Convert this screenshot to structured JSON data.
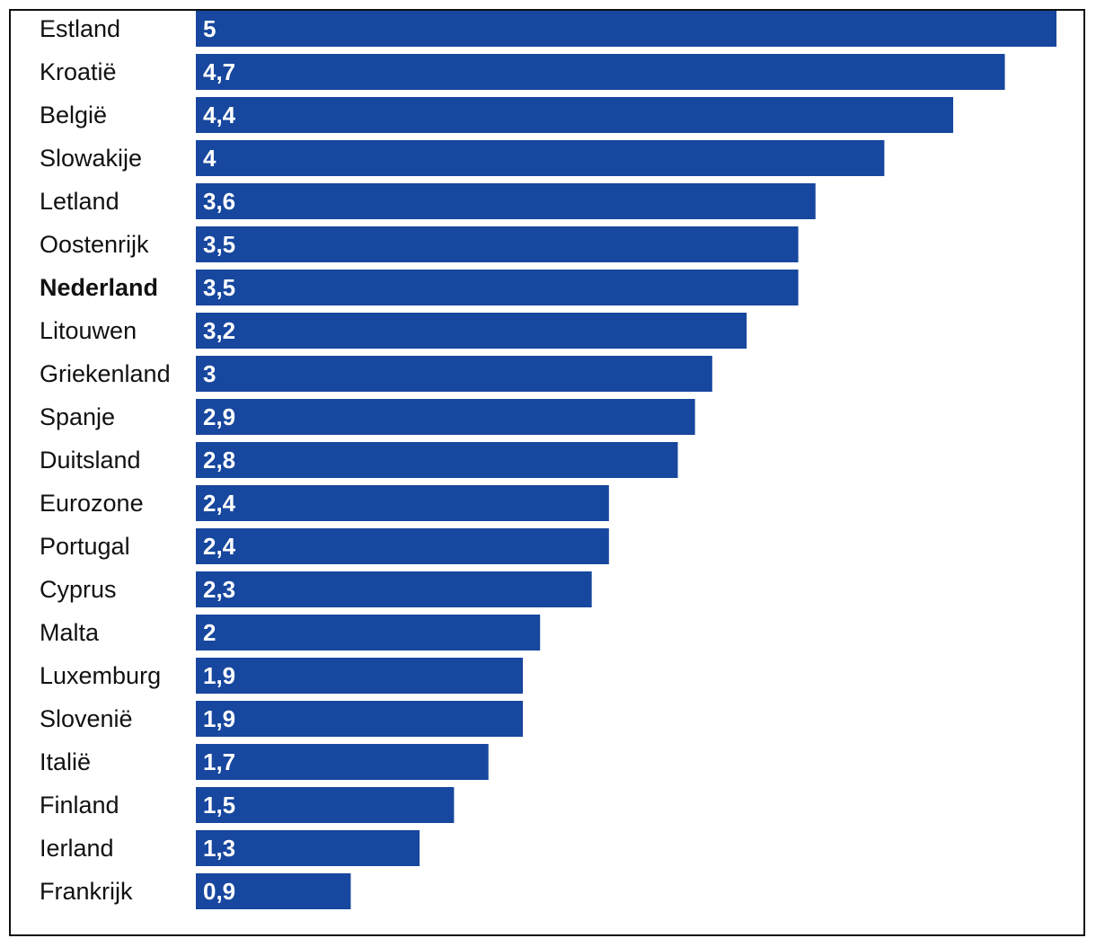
{
  "chart_data": {
    "type": "bar",
    "orientation": "horizontal",
    "categories": [
      "Estland",
      "Kroatië",
      "België",
      "Slowakije",
      "Letland",
      "Oostenrijk",
      "Nederland",
      "Litouwen",
      "Griekenland",
      "Spanje",
      "Duitsland",
      "Eurozone",
      "Portugal",
      "Cyprus",
      "Malta",
      "Luxemburg",
      "Slovenië",
      "Italië",
      "Finland",
      "Ierland",
      "Frankrijk"
    ],
    "values": [
      5,
      4.7,
      4.4,
      4,
      3.6,
      3.5,
      3.5,
      3.2,
      3,
      2.9,
      2.8,
      2.4,
      2.4,
      2.3,
      2,
      1.9,
      1.9,
      1.7,
      1.5,
      1.3,
      0.9
    ],
    "value_labels": [
      "5",
      "4,7",
      "4,4",
      "4",
      "3,6",
      "3,5",
      "3,5",
      "3,2",
      "3",
      "2,9",
      "2,8",
      "2,4",
      "2,4",
      "2,3",
      "2",
      "1,9",
      "1,9",
      "1,7",
      "1,5",
      "1,3",
      "0,9"
    ],
    "highlight": "Nederland",
    "xlim": [
      0,
      5
    ],
    "bar_color": "#17479e",
    "label_color": "#ffffff",
    "grid": false,
    "legend": false
  }
}
